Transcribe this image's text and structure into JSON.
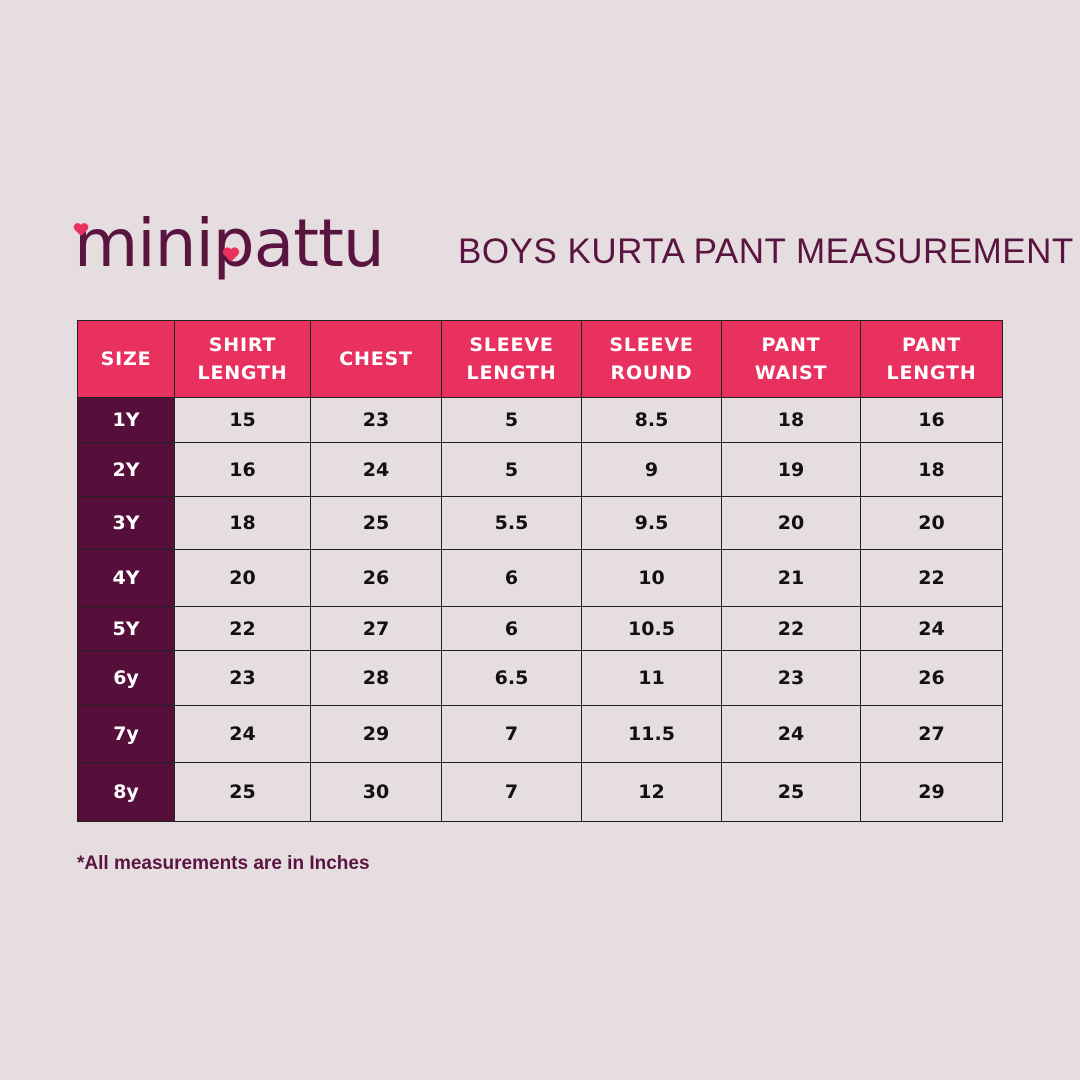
{
  "logo": "minipattu",
  "title": "BOYS KURTA PANT MEASUREMENT",
  "table": {
    "header": [
      [
        "SIZE"
      ],
      [
        "SHIRT",
        "LENGTH"
      ],
      [
        "CHEST"
      ],
      [
        "SLEEVE",
        "LENGTH"
      ],
      [
        "SLEEVE",
        "ROUND"
      ],
      [
        "PANT",
        "WAIST"
      ],
      [
        "PANT",
        "LENGTH"
      ]
    ],
    "rows": [
      [
        "1Y",
        "15",
        "23",
        "5",
        "8.5",
        "18",
        "16"
      ],
      [
        "2Y",
        "16",
        "24",
        "5",
        "9",
        "19",
        "18"
      ],
      [
        "3Y",
        "18",
        "25",
        "5.5",
        "9.5",
        "20",
        "20"
      ],
      [
        "4Y",
        "20",
        "26",
        "6",
        "10",
        "21",
        "22"
      ],
      [
        "5Y",
        "22",
        "27",
        "6",
        "10.5",
        "22",
        "24"
      ],
      [
        "6y",
        "23",
        "28",
        "6.5",
        "11",
        "23",
        "26"
      ],
      [
        "7y",
        "24",
        "29",
        "7",
        "11.5",
        "24",
        "27"
      ],
      [
        "8y",
        "25",
        "30",
        "7",
        "12",
        "25",
        "29"
      ]
    ]
  },
  "note": "*All measurements are in Inches"
}
